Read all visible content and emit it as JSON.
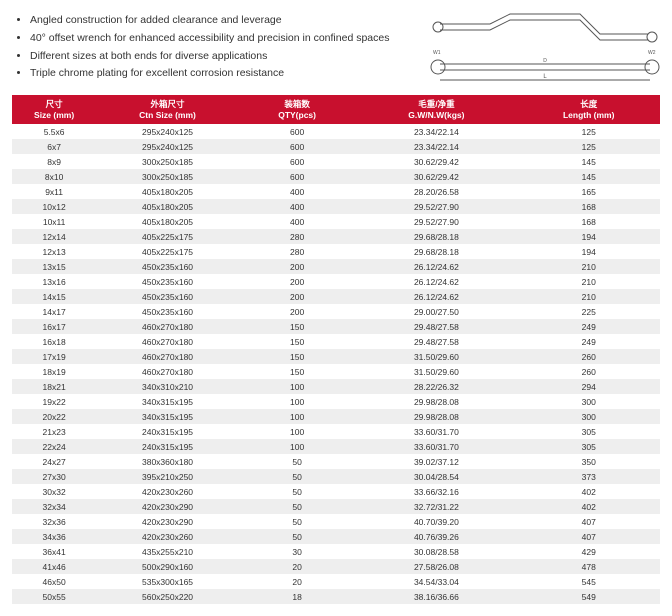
{
  "bullets": [
    "Angled construction for added clearance and leverage",
    "40° offset wrench for enhanced accessibility and precision in confined spaces",
    "Different sizes at both ends for diverse applications",
    "Triple chrome plating for excellent corrosion resistance"
  ],
  "table": {
    "header_bg": "#c8102e",
    "header_fg": "#ffffff",
    "row_alt_bg": "#eeeeee",
    "columns": [
      {
        "cn": "尺寸",
        "en": "Size (mm)",
        "width": "13%"
      },
      {
        "cn": "外箱尺寸",
        "en": "Ctn Size (mm)",
        "width": "22%"
      },
      {
        "cn": "装箱数",
        "en": "QTY(pcs)",
        "width": "18%"
      },
      {
        "cn": "毛重/净重",
        "en": "G.W/N.W(kgs)",
        "width": "25%"
      },
      {
        "cn": "长度",
        "en": "Length (mm)",
        "width": "22%"
      }
    ],
    "rows": [
      [
        "5.5x6",
        "295x240x125",
        "600",
        "23.34/22.14",
        "125"
      ],
      [
        "6x7",
        "295x240x125",
        "600",
        "23.34/22.14",
        "125"
      ],
      [
        "8x9",
        "300x250x185",
        "600",
        "30.62/29.42",
        "145"
      ],
      [
        "8x10",
        "300x250x185",
        "600",
        "30.62/29.42",
        "145"
      ],
      [
        "9x11",
        "405x180x205",
        "400",
        "28.20/26.58",
        "165"
      ],
      [
        "10x12",
        "405x180x205",
        "400",
        "29.52/27.90",
        "168"
      ],
      [
        "10x11",
        "405x180x205",
        "400",
        "29.52/27.90",
        "168"
      ],
      [
        "12x14",
        "405x225x175",
        "280",
        "29.68/28.18",
        "194"
      ],
      [
        "12x13",
        "405x225x175",
        "280",
        "29.68/28.18",
        "194"
      ],
      [
        "13x15",
        "450x235x160",
        "200",
        "26.12/24.62",
        "210"
      ],
      [
        "13x16",
        "450x235x160",
        "200",
        "26.12/24.62",
        "210"
      ],
      [
        "14x15",
        "450x235x160",
        "200",
        "26.12/24.62",
        "210"
      ],
      [
        "14x17",
        "450x235x160",
        "200",
        "29.00/27.50",
        "225"
      ],
      [
        "16x17",
        "460x270x180",
        "150",
        "29.48/27.58",
        "249"
      ],
      [
        "16x18",
        "460x270x180",
        "150",
        "29.48/27.58",
        "249"
      ],
      [
        "17x19",
        "460x270x180",
        "150",
        "31.50/29.60",
        "260"
      ],
      [
        "18x19",
        "460x270x180",
        "150",
        "31.50/29.60",
        "260"
      ],
      [
        "18x21",
        "340x310x210",
        "100",
        "28.22/26.32",
        "294"
      ],
      [
        "19x22",
        "340x315x195",
        "100",
        "29.98/28.08",
        "300"
      ],
      [
        "20x22",
        "340x315x195",
        "100",
        "29.98/28.08",
        "300"
      ],
      [
        "21x23",
        "240x315x195",
        "100",
        "33.60/31.70",
        "305"
      ],
      [
        "22x24",
        "240x315x195",
        "100",
        "33.60/31.70",
        "305"
      ],
      [
        "24x27",
        "380x360x180",
        "50",
        "39.02/37.12",
        "350"
      ],
      [
        "27x30",
        "395x210x250",
        "50",
        "30.04/28.54",
        "373"
      ],
      [
        "30x32",
        "420x230x260",
        "50",
        "33.66/32.16",
        "402"
      ],
      [
        "32x34",
        "420x230x290",
        "50",
        "32.72/31.22",
        "402"
      ],
      [
        "32x36",
        "420x230x290",
        "50",
        "40.70/39.20",
        "407"
      ],
      [
        "34x36",
        "420x230x260",
        "50",
        "40.76/39.26",
        "407"
      ],
      [
        "36x41",
        "435x255x210",
        "30",
        "30.08/28.58",
        "429"
      ],
      [
        "41x46",
        "500x290x160",
        "20",
        "27.58/26.08",
        "478"
      ],
      [
        "46x50",
        "535x300x165",
        "20",
        "34.54/33.04",
        "545"
      ],
      [
        "50x55",
        "560x250x220",
        "18",
        "38.16/36.66",
        "549"
      ]
    ]
  }
}
